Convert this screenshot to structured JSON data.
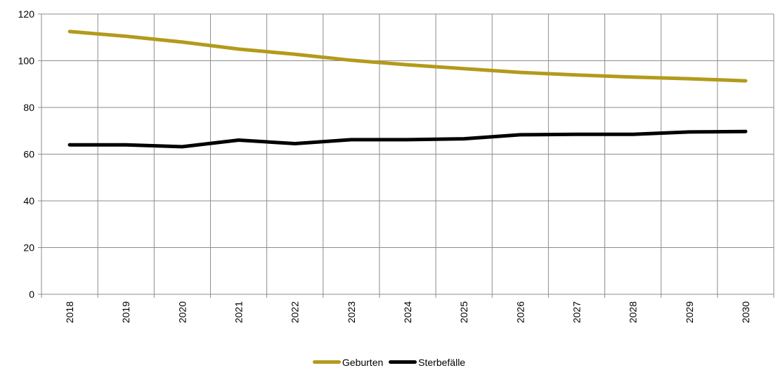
{
  "chart_data": {
    "type": "line",
    "title": "",
    "xlabel": "",
    "ylabel": "",
    "categories": [
      "2018",
      "2019",
      "2020",
      "2021",
      "2022",
      "2023",
      "2024",
      "2025",
      "2026",
      "2027",
      "2028",
      "2029",
      "2030"
    ],
    "ylim": [
      0,
      120
    ],
    "yticks": [
      0,
      20,
      40,
      60,
      80,
      100,
      120
    ],
    "grid": true,
    "legend_position": "bottom",
    "series": [
      {
        "name": "Geburten",
        "color": "#b39a1b",
        "values": [
          112.5,
          110.5,
          108.0,
          105.0,
          102.8,
          100.2,
          98.3,
          96.6,
          95.0,
          93.9,
          93.0,
          92.3,
          91.4
        ]
      },
      {
        "name": "Sterbefälle",
        "color": "#000000",
        "values": [
          64.0,
          64.0,
          63.2,
          66.0,
          64.5,
          66.2,
          66.2,
          66.6,
          68.3,
          68.5,
          68.5,
          69.5,
          69.7
        ]
      }
    ]
  }
}
